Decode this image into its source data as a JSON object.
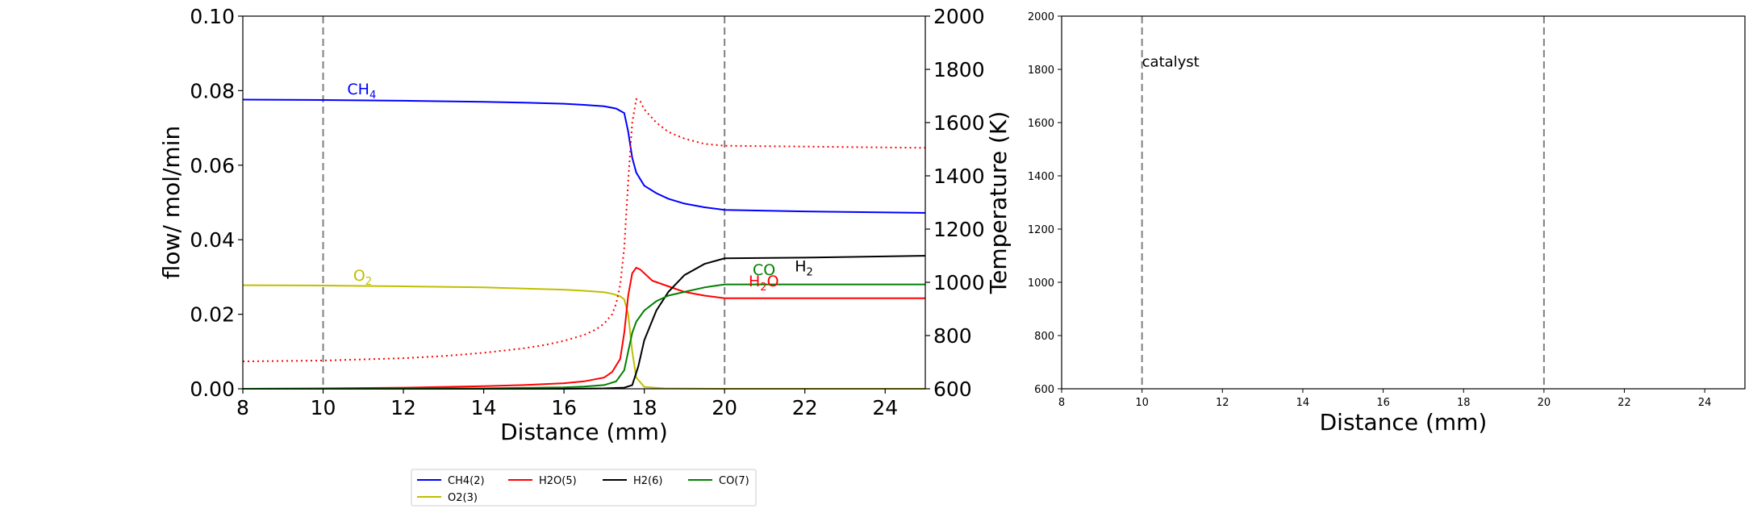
{
  "chart_data": [
    {
      "type": "line",
      "xlabel": "Distance (mm)",
      "ylabel": "flow/ mol/min",
      "y2label": "Temperature (K)",
      "xlim": [
        8,
        25
      ],
      "ylim": [
        0,
        0.1
      ],
      "y2lim": [
        600,
        2000
      ],
      "xticks": [
        "8",
        "10",
        "12",
        "14",
        "16",
        "18",
        "20",
        "22",
        "24"
      ],
      "yticks": [
        "0.00",
        "0.02",
        "0.04",
        "0.06",
        "0.08",
        "0.10"
      ],
      "y2ticks": [
        "600",
        "800",
        "1000",
        "1200",
        "1400",
        "1600",
        "1800",
        "2000"
      ],
      "vlines": [
        10,
        20
      ],
      "grid": false,
      "series": [
        {
          "name": "CH4(2)",
          "color": "#0000ff",
          "x": [
            8,
            10,
            12,
            14,
            15,
            16,
            16.5,
            17,
            17.3,
            17.5,
            17.6,
            17.7,
            17.8,
            18,
            18.3,
            18.6,
            19,
            19.5,
            20,
            22,
            25
          ],
          "y": [
            0.0776,
            0.0775,
            0.0773,
            0.077,
            0.0768,
            0.0765,
            0.0762,
            0.0758,
            0.0752,
            0.074,
            0.069,
            0.062,
            0.058,
            0.0545,
            0.0525,
            0.051,
            0.0497,
            0.0487,
            0.048,
            0.0476,
            0.0472
          ]
        },
        {
          "name": "O2(3)",
          "color": "#bfbf00",
          "x": [
            8,
            10,
            12,
            14,
            15,
            16,
            16.5,
            17,
            17.2,
            17.4,
            17.5,
            17.6,
            17.7,
            17.8,
            18,
            18.5,
            20,
            25
          ],
          "y": [
            0.0278,
            0.0277,
            0.0275,
            0.0272,
            0.0269,
            0.0266,
            0.0263,
            0.0259,
            0.0255,
            0.0248,
            0.024,
            0.02,
            0.01,
            0.003,
            0.0005,
            0.0001,
            0.0,
            0.0
          ]
        },
        {
          "name": "H2O(5)",
          "color": "#ff0000",
          "x": [
            8,
            10,
            12,
            14,
            15,
            16,
            16.5,
            17,
            17.2,
            17.4,
            17.5,
            17.6,
            17.7,
            17.8,
            17.9,
            18.2,
            18.6,
            19,
            19.5,
            20,
            22,
            25
          ],
          "y": [
            0.0,
            0.0001,
            0.0003,
            0.0007,
            0.001,
            0.0015,
            0.002,
            0.003,
            0.0045,
            0.008,
            0.015,
            0.025,
            0.031,
            0.0325,
            0.032,
            0.029,
            0.0275,
            0.026,
            0.025,
            0.0243,
            0.0243,
            0.0243
          ]
        },
        {
          "name": "H2(6)",
          "color": "#000000",
          "x": [
            8,
            16,
            17,
            17.5,
            17.7,
            17.85,
            18,
            18.3,
            18.6,
            19,
            19.5,
            20,
            22,
            25
          ],
          "y": [
            0.0,
            0.0,
            0.0001,
            0.0003,
            0.001,
            0.006,
            0.013,
            0.021,
            0.026,
            0.0305,
            0.0335,
            0.035,
            0.0352,
            0.0357
          ]
        },
        {
          "name": "CO(7)",
          "color": "#008000",
          "x": [
            8,
            14,
            16,
            16.5,
            17,
            17.3,
            17.5,
            17.6,
            17.7,
            17.8,
            18,
            18.3,
            18.6,
            19,
            19.5,
            20,
            22,
            25
          ],
          "y": [
            0.0,
            0.0001,
            0.0004,
            0.0006,
            0.001,
            0.002,
            0.005,
            0.01,
            0.015,
            0.018,
            0.021,
            0.0235,
            0.025,
            0.026,
            0.0272,
            0.028,
            0.028,
            0.028
          ]
        }
      ],
      "temperature_series": {
        "color": "#ff0000",
        "x": [
          8,
          10,
          12,
          13,
          14,
          15,
          15.5,
          16,
          16.5,
          16.8,
          17,
          17.2,
          17.3,
          17.4,
          17.5,
          17.6,
          17.7,
          17.8,
          17.9,
          18,
          18.3,
          18.6,
          19,
          19.5,
          20,
          22,
          25
        ],
        "y": [
          703,
          706,
          715,
          723,
          735,
          752,
          764,
          780,
          802,
          823,
          845,
          880,
          920,
          990,
          1130,
          1380,
          1600,
          1688,
          1680,
          1650,
          1600,
          1565,
          1540,
          1520,
          1513,
          1510,
          1505
        ]
      },
      "annotations": [
        {
          "text": "CH",
          "sub": "4",
          "x": 10.6,
          "y": 0.079,
          "color": "#0000ff"
        },
        {
          "text": "O",
          "sub": "2",
          "x": 10.75,
          "y": 0.029,
          "color": "#bfbf00"
        },
        {
          "text": "CO",
          "sub": "",
          "x": 20.7,
          "y": 0.0305,
          "color": "#008000"
        },
        {
          "text": "H",
          "sub": "2",
          "x": 21.75,
          "y": 0.0315,
          "color": "#000000"
        },
        {
          "text": "H",
          "sub": "2",
          "tail": "O",
          "x": 20.6,
          "y": 0.0275,
          "color": "#ff0000"
        }
      ],
      "legend": {
        "placement": "bottom-center",
        "entries": [
          {
            "label": "CH4(2)",
            "color": "#0000ff"
          },
          {
            "label": "H2O(5)",
            "color": "#ff0000"
          },
          {
            "label": "H2(6)",
            "color": "#000000"
          },
          {
            "label": "CO(7)",
            "color": "#008000"
          },
          {
            "label": "O2(3)",
            "color": "#bfbf00"
          }
        ]
      }
    },
    {
      "type": "line",
      "xlabel": "Distance (mm)",
      "ylabel": "",
      "xlim": [
        8,
        25
      ],
      "ylim": [
        600,
        2000
      ],
      "xticks": [
        "8",
        "10",
        "12",
        "14",
        "16",
        "18",
        "20",
        "22",
        "24"
      ],
      "yticks": [
        "600",
        "800",
        "1000",
        "1200",
        "1400",
        "1600",
        "1800",
        "2000"
      ],
      "vlines": [
        10,
        20
      ],
      "grid": false,
      "annotations": [
        {
          "text": "catalyst",
          "x": 10,
          "y": 1810,
          "color": "#000000"
        }
      ],
      "series": []
    }
  ]
}
